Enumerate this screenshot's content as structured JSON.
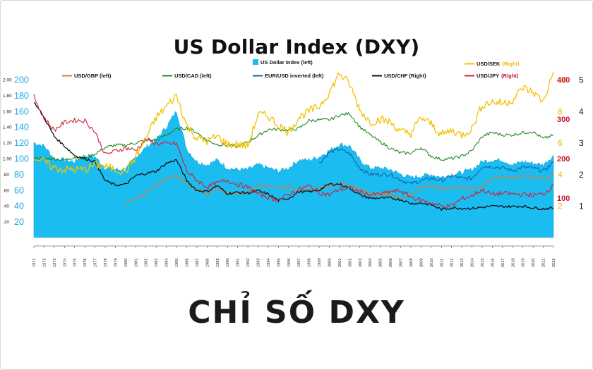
{
  "title": "US Dollar Index (DXY)",
  "caption": "CHỈ SỐ DXY",
  "colors": {
    "dxy_fill": "#1bbcf0",
    "gbp": "#e87722",
    "cad": "#1f8a1f",
    "eur": "#1a5fa8",
    "chf": "#111111",
    "sek": "#f2c200",
    "jpy": "#d0203c",
    "left_axis_blue": "#1aa8e0",
    "right_axis_yellow": "#e8b800",
    "right_axis_red": "#c8102e"
  },
  "chart_data": {
    "type": "line",
    "title": "US Dollar Index (DXY)",
    "x_range": [
      1971,
      2022
    ],
    "x_ticks": [
      "1971",
      "1972",
      "1973",
      "1974",
      "1975",
      "1976",
      "1977",
      "1978",
      "1979",
      "1980",
      "1981",
      "1982",
      "1983",
      "1984",
      "1985",
      "1986",
      "1987",
      "1988",
      "1989",
      "1990",
      "1991",
      "1992",
      "1993",
      "1994",
      "1995",
      "1996",
      "1997",
      "1998",
      "1999",
      "2000",
      "2001",
      "2002",
      "2003",
      "2004",
      "2005",
      "2006",
      "2007",
      "2008",
      "2009",
      "2010",
      "2011",
      "2012",
      "2013",
      "2014",
      "2015",
      "2016",
      "2017",
      "2018",
      "2019",
      "2020",
      "2021",
      "2022"
    ],
    "left_axis_a": {
      "ticks": [
        "2.00",
        "1.80",
        "1.60",
        "1.40",
        "1.20",
        "1.00",
        ".80",
        ".60",
        ".40",
        ".20"
      ],
      "range": [
        0,
        2.0
      ]
    },
    "left_axis_b": {
      "ticks": [
        "200",
        "180",
        "160",
        "140",
        "120",
        "100",
        "80",
        "60",
        "40",
        "20"
      ],
      "range": [
        0,
        200
      ]
    },
    "right_axis_yellow": {
      "ticks": [
        "10",
        "8",
        "6",
        "4",
        "2"
      ],
      "range": [
        0,
        10
      ]
    },
    "right_axis_red": {
      "ticks": [
        "400",
        "300",
        "200",
        "100"
      ],
      "range": [
        0,
        400
      ]
    },
    "right_axis_black": {
      "ticks": [
        "5",
        "4",
        "3",
        "2",
        "1"
      ],
      "range": [
        0,
        5
      ]
    },
    "legend": [
      {
        "key": "dxy",
        "label": "US Dollar Index (left)"
      },
      {
        "key": "sek",
        "label": "USD/SEK",
        "suffix": "(Right)"
      },
      {
        "key": "gbp",
        "label": "USD/GBP (left)"
      },
      {
        "key": "cad",
        "label": "USD/CAD (left)"
      },
      {
        "key": "eur",
        "label": "EUR/USD inverted (left)"
      },
      {
        "key": "chf",
        "label": "USD/CHF (Right)"
      },
      {
        "key": "jpy",
        "label": "USD/JPY",
        "suffix": "(Right)"
      }
    ],
    "series": [
      {
        "key": "dxy",
        "name": "US Dollar Index",
        "axis": "left_b",
        "x": [
          1971,
          1972,
          1973,
          1974,
          1975,
          1976,
          1977,
          1978,
          1979,
          1980,
          1981,
          1982,
          1983,
          1984,
          1985,
          1986,
          1987,
          1988,
          1989,
          1990,
          1991,
          1992,
          1993,
          1994,
          1995,
          1996,
          1997,
          1998,
          1999,
          2000,
          2001,
          2002,
          2003,
          2004,
          2005,
          2006,
          2007,
          2008,
          2009,
          2010,
          2011,
          2012,
          2013,
          2014,
          2015,
          2016,
          2017,
          2018,
          2019,
          2020,
          2021,
          2022
        ],
        "values": [
          120,
          116,
          100,
          98,
          96,
          104,
          102,
          88,
          86,
          86,
          102,
          114,
          124,
          140,
          160,
          112,
          96,
          92,
          98,
          88,
          86,
          86,
          92,
          88,
          84,
          88,
          98,
          98,
          102,
          110,
          118,
          116,
          98,
          88,
          88,
          86,
          80,
          76,
          78,
          80,
          76,
          80,
          82,
          86,
          96,
          98,
          98,
          92,
          96,
          94,
          92,
          104
        ]
      },
      {
        "key": "sek",
        "name": "USD/SEK",
        "axis": "right_yellow",
        "x": [
          1971,
          1972,
          1973,
          1974,
          1975,
          1976,
          1977,
          1978,
          1979,
          1980,
          1981,
          1982,
          1983,
          1984,
          1985,
          1986,
          1987,
          1988,
          1989,
          1990,
          1991,
          1992,
          1993,
          1994,
          1995,
          1996,
          1997,
          1998,
          1999,
          2000,
          2001,
          2002,
          2003,
          2004,
          2005,
          2006,
          2007,
          2008,
          2009,
          2010,
          2011,
          2012,
          2013,
          2014,
          2015,
          2016,
          2017,
          2018,
          2019,
          2020,
          2021,
          2022
        ],
        "values": [
          5.1,
          4.8,
          4.4,
          4.3,
          4.3,
          4.3,
          4.6,
          4.5,
          4.3,
          4.2,
          5.1,
          6.3,
          7.6,
          8.3,
          9.0,
          7.1,
          6.3,
          6.1,
          6.4,
          5.9,
          5.9,
          5.8,
          7.8,
          7.7,
          7.1,
          6.7,
          7.6,
          8.0,
          8.3,
          9.2,
          10.4,
          9.7,
          8.1,
          7.3,
          7.5,
          7.3,
          6.7,
          6.6,
          7.6,
          7.2,
          6.5,
          6.8,
          6.5,
          6.9,
          8.4,
          8.6,
          8.5,
          8.7,
          9.5,
          9.2,
          8.6,
          10.5
        ]
      },
      {
        "key": "gbp",
        "name": "USD/GBP",
        "axis": "left_a",
        "x": [
          1980,
          1981,
          1982,
          1983,
          1984,
          1985,
          1986,
          1987,
          1988,
          1989,
          1990,
          1991,
          1992,
          1993,
          1994,
          1995,
          1996,
          1997,
          1998,
          1999,
          2000,
          2001,
          2002,
          2003,
          2004,
          2005,
          2006,
          2007,
          2008,
          2009,
          2010,
          2011,
          2012,
          2013,
          2014,
          2015,
          2016,
          2017,
          2018,
          2019,
          2020,
          2021,
          2022
        ],
        "values": [
          0.43,
          0.49,
          0.57,
          0.66,
          0.75,
          0.78,
          0.68,
          0.61,
          0.56,
          0.61,
          0.56,
          0.57,
          0.57,
          0.67,
          0.65,
          0.63,
          0.64,
          0.61,
          0.6,
          0.62,
          0.66,
          0.69,
          0.67,
          0.61,
          0.55,
          0.55,
          0.54,
          0.5,
          0.54,
          0.64,
          0.65,
          0.62,
          0.63,
          0.64,
          0.61,
          0.65,
          0.74,
          0.78,
          0.75,
          0.78,
          0.78,
          0.73,
          0.81
        ]
      },
      {
        "key": "cad",
        "name": "USD/CAD",
        "axis": "left_a",
        "x": [
          1971,
          1972,
          1973,
          1974,
          1975,
          1976,
          1977,
          1978,
          1979,
          1980,
          1981,
          1982,
          1983,
          1984,
          1985,
          1986,
          1987,
          1988,
          1989,
          1990,
          1991,
          1992,
          1993,
          1994,
          1995,
          1996,
          1997,
          1998,
          1999,
          2000,
          2001,
          2002,
          2003,
          2004,
          2005,
          2006,
          2007,
          2008,
          2009,
          2010,
          2011,
          2012,
          2013,
          2014,
          2015,
          2016,
          2017,
          2018,
          2019,
          2020,
          2021,
          2022
        ],
        "values": [
          1.01,
          1.0,
          1.0,
          0.98,
          1.02,
          0.99,
          1.06,
          1.14,
          1.17,
          1.17,
          1.2,
          1.23,
          1.23,
          1.3,
          1.37,
          1.39,
          1.33,
          1.23,
          1.18,
          1.17,
          1.15,
          1.21,
          1.29,
          1.37,
          1.37,
          1.36,
          1.38,
          1.48,
          1.49,
          1.49,
          1.55,
          1.57,
          1.4,
          1.3,
          1.21,
          1.13,
          1.07,
          1.07,
          1.14,
          1.03,
          0.99,
          1.0,
          1.03,
          1.1,
          1.28,
          1.33,
          1.3,
          1.3,
          1.33,
          1.34,
          1.25,
          1.3
        ]
      },
      {
        "key": "eur",
        "name": "EUR/USD inverted",
        "axis": "left_b",
        "x": [
          1999,
          2000,
          2001,
          2002,
          2003,
          2004,
          2005,
          2006,
          2007,
          2008,
          2009,
          2010,
          2011,
          2012,
          2013,
          2014,
          2015,
          2016,
          2017,
          2018,
          2019,
          2020,
          2021,
          2022
        ],
        "values": [
          94,
          108,
          112,
          106,
          88,
          80,
          80,
          80,
          73,
          68,
          72,
          75,
          72,
          78,
          75,
          75,
          90,
          90,
          88,
          85,
          89,
          88,
          84,
          95
        ]
      },
      {
        "key": "chf",
        "name": "USD/CHF",
        "axis": "right_black",
        "x": [
          1971,
          1972,
          1973,
          1974,
          1975,
          1976,
          1977,
          1978,
          1979,
          1980,
          1981,
          1982,
          1983,
          1984,
          1985,
          1986,
          1987,
          1988,
          1989,
          1990,
          1991,
          1992,
          1993,
          1994,
          1995,
          1996,
          1997,
          1998,
          1999,
          2000,
          2001,
          2002,
          2003,
          2004,
          2005,
          2006,
          2007,
          2008,
          2009,
          2010,
          2011,
          2012,
          2013,
          2014,
          2015,
          2016,
          2017,
          2018,
          2019,
          2020,
          2021,
          2022
        ],
        "values": [
          4.3,
          3.8,
          3.2,
          2.9,
          2.6,
          2.5,
          2.4,
          1.8,
          1.66,
          1.68,
          1.96,
          2.03,
          2.1,
          2.35,
          2.46,
          1.8,
          1.49,
          1.46,
          1.64,
          1.39,
          1.43,
          1.41,
          1.48,
          1.37,
          1.18,
          1.24,
          1.45,
          1.45,
          1.5,
          1.69,
          1.69,
          1.56,
          1.35,
          1.24,
          1.25,
          1.25,
          1.2,
          1.08,
          1.09,
          1.04,
          0.89,
          0.94,
          0.93,
          0.92,
          0.96,
          0.99,
          0.98,
          0.98,
          0.99,
          0.94,
          0.91,
          0.94
        ]
      },
      {
        "key": "jpy",
        "name": "USD/JPY",
        "axis": "right_red",
        "x": [
          1971,
          1972,
          1973,
          1974,
          1975,
          1976,
          1977,
          1978,
          1979,
          1980,
          1981,
          1982,
          1983,
          1984,
          1985,
          1986,
          1987,
          1988,
          1989,
          1990,
          1991,
          1992,
          1993,
          1994,
          1995,
          1996,
          1997,
          1998,
          1999,
          2000,
          2001,
          2002,
          2003,
          2004,
          2005,
          2006,
          2007,
          2008,
          2009,
          2010,
          2011,
          2012,
          2013,
          2014,
          2015,
          2016,
          2017,
          2018,
          2019,
          2020,
          2021,
          2022
        ],
        "values": [
          358,
          303,
          272,
          292,
          297,
          296,
          268,
          210,
          219,
          227,
          221,
          249,
          238,
          237,
          238,
          168,
          145,
          128,
          138,
          145,
          135,
          127,
          111,
          102,
          94,
          109,
          121,
          131,
          114,
          108,
          122,
          125,
          116,
          108,
          110,
          116,
          118,
          103,
          94,
          88,
          80,
          80,
          98,
          106,
          121,
          109,
          112,
          110,
          109,
          107,
          110,
          131
        ]
      }
    ]
  }
}
